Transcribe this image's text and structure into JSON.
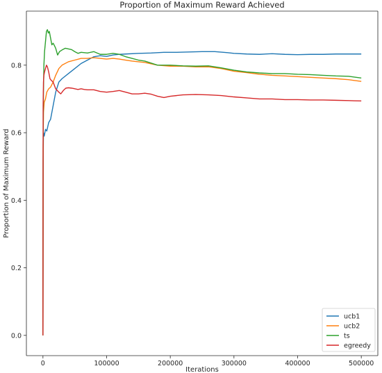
{
  "chart_data": {
    "type": "line",
    "title": "Proportion of Maximum Reward Achieved",
    "xlabel": "Iterations",
    "ylabel": "Proportion of Maximum Reward",
    "xlim": [
      -26000,
      526000
    ],
    "ylim": [
      -0.06,
      0.96
    ],
    "xticks": [
      0,
      100000,
      200000,
      300000,
      400000,
      500000
    ],
    "xtick_labels": [
      "0",
      "100000",
      "200000",
      "300000",
      "400000",
      "500000"
    ],
    "yticks": [
      0.0,
      0.2,
      0.4,
      0.6,
      0.8
    ],
    "ytick_labels": [
      "0.0",
      "0.2",
      "0.4",
      "0.6",
      "0.8"
    ],
    "grid": false,
    "legend_position": "lower-right",
    "series": [
      {
        "name": "ucb1",
        "color": "#1f77b4",
        "points": [
          [
            0,
            0.0
          ],
          [
            300,
            0.52
          ],
          [
            800,
            0.6
          ],
          [
            2000,
            0.59
          ],
          [
            4000,
            0.61
          ],
          [
            6000,
            0.605
          ],
          [
            9000,
            0.63
          ],
          [
            12000,
            0.64
          ],
          [
            16000,
            0.68
          ],
          [
            20000,
            0.72
          ],
          [
            25000,
            0.75
          ],
          [
            30000,
            0.76
          ],
          [
            40000,
            0.775
          ],
          [
            50000,
            0.79
          ],
          [
            60000,
            0.805
          ],
          [
            70000,
            0.815
          ],
          [
            80000,
            0.825
          ],
          [
            90000,
            0.828
          ],
          [
            100000,
            0.826
          ],
          [
            110000,
            0.83
          ],
          [
            120000,
            0.832
          ],
          [
            130000,
            0.833
          ],
          [
            150000,
            0.835
          ],
          [
            170000,
            0.836
          ],
          [
            190000,
            0.838
          ],
          [
            210000,
            0.838
          ],
          [
            230000,
            0.839
          ],
          [
            250000,
            0.84
          ],
          [
            270000,
            0.84
          ],
          [
            290000,
            0.837
          ],
          [
            300000,
            0.835
          ],
          [
            320000,
            0.833
          ],
          [
            340000,
            0.832
          ],
          [
            360000,
            0.834
          ],
          [
            380000,
            0.832
          ],
          [
            400000,
            0.831
          ],
          [
            420000,
            0.832
          ],
          [
            440000,
            0.832
          ],
          [
            460000,
            0.833
          ],
          [
            480000,
            0.833
          ],
          [
            500000,
            0.833
          ]
        ]
      },
      {
        "name": "ucb2",
        "color": "#ff7f0e",
        "points": [
          [
            0,
            0.0
          ],
          [
            300,
            0.56
          ],
          [
            800,
            0.66
          ],
          [
            2000,
            0.69
          ],
          [
            4000,
            0.7
          ],
          [
            6000,
            0.72
          ],
          [
            9000,
            0.73
          ],
          [
            12000,
            0.735
          ],
          [
            16000,
            0.75
          ],
          [
            20000,
            0.77
          ],
          [
            25000,
            0.79
          ],
          [
            30000,
            0.8
          ],
          [
            40000,
            0.81
          ],
          [
            50000,
            0.815
          ],
          [
            60000,
            0.82
          ],
          [
            70000,
            0.82
          ],
          [
            80000,
            0.822
          ],
          [
            90000,
            0.82
          ],
          [
            100000,
            0.818
          ],
          [
            110000,
            0.82
          ],
          [
            120000,
            0.818
          ],
          [
            130000,
            0.815
          ],
          [
            140000,
            0.812
          ],
          [
            160000,
            0.808
          ],
          [
            180000,
            0.8
          ],
          [
            200000,
            0.797
          ],
          [
            220000,
            0.797
          ],
          [
            240000,
            0.795
          ],
          [
            260000,
            0.795
          ],
          [
            280000,
            0.79
          ],
          [
            300000,
            0.782
          ],
          [
            320000,
            0.778
          ],
          [
            340000,
            0.773
          ],
          [
            360000,
            0.77
          ],
          [
            380000,
            0.768
          ],
          [
            400000,
            0.766
          ],
          [
            420000,
            0.764
          ],
          [
            440000,
            0.762
          ],
          [
            460000,
            0.76
          ],
          [
            480000,
            0.757
          ],
          [
            500000,
            0.752
          ]
        ]
      },
      {
        "name": "ts",
        "color": "#2ca02c",
        "points": [
          [
            0,
            0.0
          ],
          [
            300,
            0.55
          ],
          [
            800,
            0.72
          ],
          [
            1500,
            0.8
          ],
          [
            2500,
            0.84
          ],
          [
            4000,
            0.87
          ],
          [
            5500,
            0.9
          ],
          [
            7000,
            0.905
          ],
          [
            8500,
            0.895
          ],
          [
            10000,
            0.9
          ],
          [
            12000,
            0.88
          ],
          [
            14000,
            0.86
          ],
          [
            16000,
            0.865
          ],
          [
            18000,
            0.858
          ],
          [
            20000,
            0.85
          ],
          [
            23000,
            0.83
          ],
          [
            26000,
            0.84
          ],
          [
            30000,
            0.845
          ],
          [
            35000,
            0.85
          ],
          [
            40000,
            0.848
          ],
          [
            45000,
            0.846
          ],
          [
            50000,
            0.84
          ],
          [
            55000,
            0.835
          ],
          [
            60000,
            0.838
          ],
          [
            70000,
            0.836
          ],
          [
            80000,
            0.84
          ],
          [
            90000,
            0.832
          ],
          [
            100000,
            0.832
          ],
          [
            110000,
            0.835
          ],
          [
            120000,
            0.832
          ],
          [
            130000,
            0.825
          ],
          [
            140000,
            0.82
          ],
          [
            150000,
            0.815
          ],
          [
            160000,
            0.812
          ],
          [
            180000,
            0.8
          ],
          [
            200000,
            0.8
          ],
          [
            220000,
            0.798
          ],
          [
            240000,
            0.797
          ],
          [
            260000,
            0.798
          ],
          [
            280000,
            0.792
          ],
          [
            300000,
            0.785
          ],
          [
            320000,
            0.78
          ],
          [
            340000,
            0.777
          ],
          [
            360000,
            0.775
          ],
          [
            380000,
            0.775
          ],
          [
            400000,
            0.773
          ],
          [
            420000,
            0.772
          ],
          [
            440000,
            0.77
          ],
          [
            460000,
            0.768
          ],
          [
            480000,
            0.767
          ],
          [
            500000,
            0.762
          ]
        ]
      },
      {
        "name": "egreedy",
        "color": "#d62728",
        "points": [
          [
            0,
            0.0
          ],
          [
            300,
            0.68
          ],
          [
            800,
            0.75
          ],
          [
            1500,
            0.77
          ],
          [
            2500,
            0.78
          ],
          [
            4000,
            0.79
          ],
          [
            5500,
            0.8
          ],
          [
            7000,
            0.795
          ],
          [
            9000,
            0.78
          ],
          [
            11000,
            0.76
          ],
          [
            13000,
            0.755
          ],
          [
            16000,
            0.75
          ],
          [
            20000,
            0.73
          ],
          [
            25000,
            0.72
          ],
          [
            28000,
            0.715
          ],
          [
            32000,
            0.725
          ],
          [
            36000,
            0.732
          ],
          [
            40000,
            0.733
          ],
          [
            45000,
            0.732
          ],
          [
            50000,
            0.73
          ],
          [
            55000,
            0.728
          ],
          [
            60000,
            0.73
          ],
          [
            65000,
            0.728
          ],
          [
            70000,
            0.727
          ],
          [
            80000,
            0.727
          ],
          [
            90000,
            0.722
          ],
          [
            100000,
            0.72
          ],
          [
            110000,
            0.722
          ],
          [
            120000,
            0.725
          ],
          [
            130000,
            0.72
          ],
          [
            140000,
            0.715
          ],
          [
            150000,
            0.715
          ],
          [
            160000,
            0.717
          ],
          [
            170000,
            0.714
          ],
          [
            180000,
            0.708
          ],
          [
            190000,
            0.704
          ],
          [
            200000,
            0.708
          ],
          [
            220000,
            0.712
          ],
          [
            240000,
            0.713
          ],
          [
            260000,
            0.712
          ],
          [
            280000,
            0.71
          ],
          [
            300000,
            0.706
          ],
          [
            320000,
            0.703
          ],
          [
            340000,
            0.7
          ],
          [
            360000,
            0.7
          ],
          [
            380000,
            0.698
          ],
          [
            400000,
            0.698
          ],
          [
            420000,
            0.697
          ],
          [
            440000,
            0.697
          ],
          [
            460000,
            0.696
          ],
          [
            480000,
            0.695
          ],
          [
            500000,
            0.694
          ]
        ]
      }
    ]
  }
}
